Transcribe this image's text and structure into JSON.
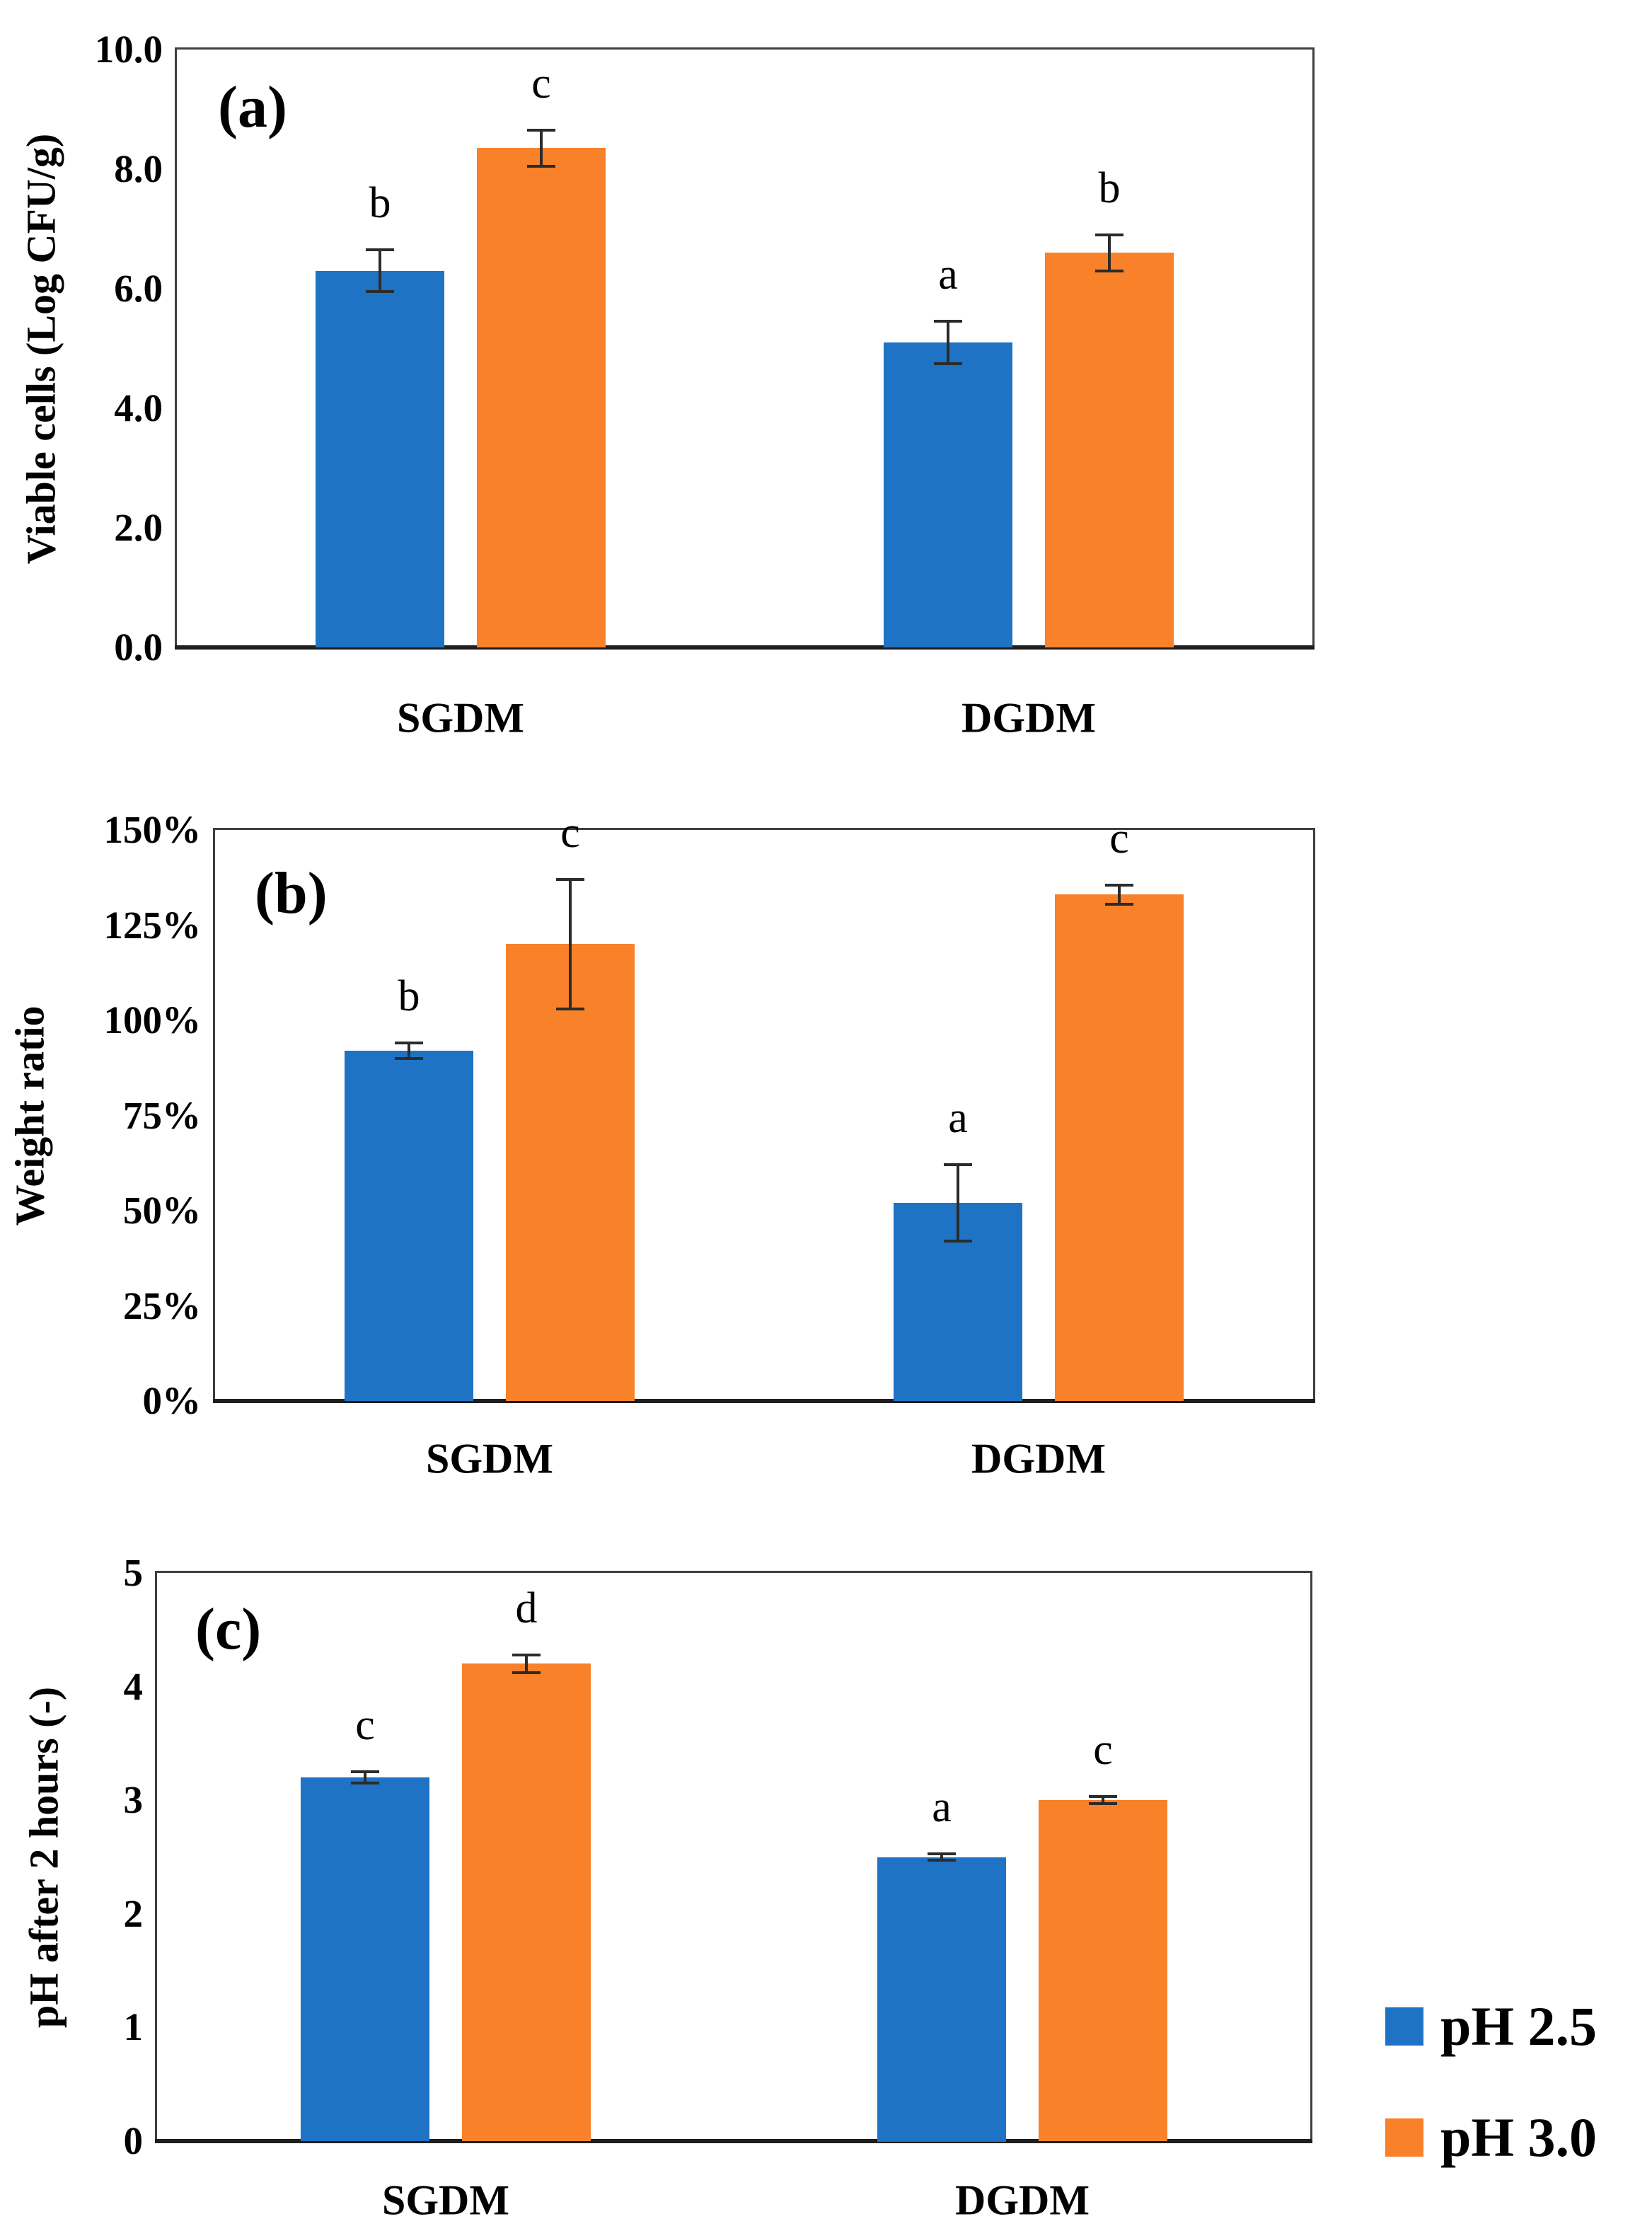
{
  "colors": {
    "series_ph25": "#1E73C4",
    "series_ph30": "#F8812A",
    "axis_frame": "#3F3F3F",
    "axis_line": "#1F1F1F",
    "error_bar": "#2B2B2B",
    "text": "#000000",
    "background": "#FFFFFF"
  },
  "legend": {
    "position": "bottom-right",
    "items": [
      {
        "label": "pH 2.5",
        "swatch": "series_ph25"
      },
      {
        "label": "pH 3.0",
        "swatch": "series_ph30"
      }
    ]
  },
  "chart_data": [
    {
      "type": "bar",
      "panel_label": "(a)",
      "title": "",
      "xlabel": "",
      "ylabel": "Viable cells (Log CFU/g)",
      "categories": [
        "SGDM",
        "DGDM"
      ],
      "ylim": [
        0,
        10
      ],
      "grid": false,
      "error_bars": true,
      "yticks": [
        {
          "value": 10,
          "label": "10.0"
        },
        {
          "value": 8,
          "label": "8.0"
        },
        {
          "value": 6,
          "label": "6.0"
        },
        {
          "value": 4,
          "label": "4.0"
        },
        {
          "value": 2,
          "label": "2.0"
        },
        {
          "value": 0,
          "label": "0.0"
        }
      ],
      "series": [
        {
          "name": "pH 2.5",
          "color": "series_ph25",
          "values": [
            6.3,
            5.1
          ],
          "errors": [
            0.35,
            0.35
          ],
          "sig_letters": [
            "b",
            "a"
          ]
        },
        {
          "name": "pH 3.0",
          "color": "series_ph30",
          "values": [
            8.35,
            6.6
          ],
          "errors": [
            0.3,
            0.3
          ],
          "sig_letters": [
            "c",
            "b"
          ]
        }
      ]
    },
    {
      "type": "bar",
      "panel_label": "(b)",
      "title": "",
      "xlabel": "",
      "ylabel": "Weight ratio",
      "categories": [
        "SGDM",
        "DGDM"
      ],
      "ylim": [
        0,
        150
      ],
      "unit": "%",
      "grid": false,
      "error_bars": true,
      "yticks": [
        {
          "value": 150,
          "label": "150%"
        },
        {
          "value": 125,
          "label": "125%"
        },
        {
          "value": 100,
          "label": "100%"
        },
        {
          "value": 75,
          "label": "75%"
        },
        {
          "value": 50,
          "label": "50%"
        },
        {
          "value": 25,
          "label": "25%"
        },
        {
          "value": 0,
          "label": "0%"
        }
      ],
      "series": [
        {
          "name": "pH 2.5",
          "color": "series_ph25",
          "values": [
            92,
            52
          ],
          "errors": [
            2,
            10
          ],
          "sig_letters": [
            "b",
            "a"
          ]
        },
        {
          "name": "pH 3.0",
          "color": "series_ph30",
          "values": [
            120,
            133
          ],
          "errors": [
            17,
            2.5
          ],
          "sig_letters": [
            "c",
            "c"
          ]
        }
      ]
    },
    {
      "type": "bar",
      "panel_label": "(c)",
      "title": "",
      "xlabel": "",
      "ylabel": "pH after 2 hours (-)",
      "categories": [
        "SGDM",
        "DGDM"
      ],
      "ylim": [
        0,
        5
      ],
      "grid": false,
      "error_bars": true,
      "yticks": [
        {
          "value": 5,
          "label": "5"
        },
        {
          "value": 4,
          "label": "4"
        },
        {
          "value": 3,
          "label": "3"
        },
        {
          "value": 2,
          "label": "2"
        },
        {
          "value": 1,
          "label": "1"
        },
        {
          "value": 0,
          "label": "0"
        }
      ],
      "series": [
        {
          "name": "pH 2.5",
          "color": "series_ph25",
          "values": [
            3.2,
            2.5
          ],
          "errors": [
            0.05,
            0.03
          ],
          "sig_letters": [
            "c",
            "a"
          ]
        },
        {
          "name": "pH 3.0",
          "color": "series_ph30",
          "values": [
            4.2,
            3.0
          ],
          "errors": [
            0.08,
            0.03
          ],
          "sig_letters": [
            "d",
            "c"
          ]
        }
      ]
    }
  ]
}
